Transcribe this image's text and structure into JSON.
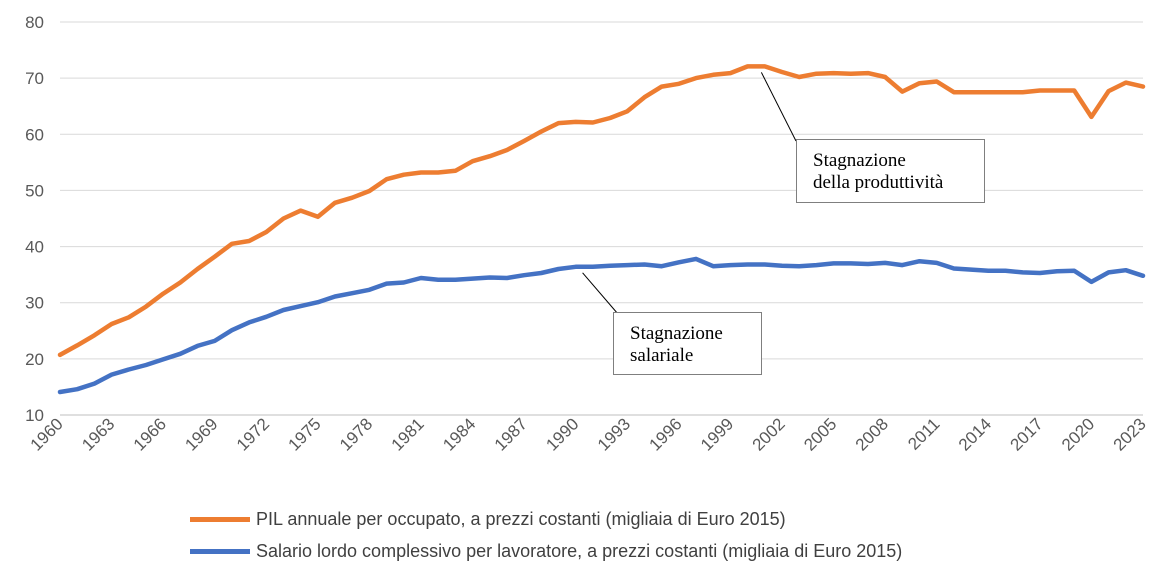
{
  "chart_data": {
    "type": "line",
    "title": "",
    "xlabel": "",
    "ylabel": "",
    "ylim": [
      10,
      80
    ],
    "yticks": [
      10,
      20,
      30,
      40,
      50,
      60,
      70,
      80
    ],
    "xlim": [
      1960,
      2023
    ],
    "xtick_labels": [
      "1960",
      "1963",
      "1966",
      "1969",
      "1972",
      "1975",
      "1978",
      "1981",
      "1984",
      "1987",
      "1990",
      "1993",
      "1996",
      "1999",
      "2002",
      "2005",
      "2008",
      "2011",
      "2014",
      "2017",
      "2020",
      "2023"
    ],
    "grid": "horizontal",
    "legend_position": "bottom",
    "series": [
      {
        "name": "PIL annuale per occupato, a prezzi costanti (migliaia di Euro 2015)",
        "color": "#ED7D31",
        "x": [
          1960,
          1961,
          1962,
          1963,
          1964,
          1965,
          1966,
          1967,
          1968,
          1969,
          1970,
          1971,
          1972,
          1973,
          1974,
          1975,
          1976,
          1977,
          1978,
          1979,
          1980,
          1981,
          1982,
          1983,
          1984,
          1985,
          1986,
          1987,
          1988,
          1989,
          1990,
          1991,
          1992,
          1993,
          1994,
          1995,
          1996,
          1997,
          1998,
          1999,
          2000,
          2001,
          2002,
          2003,
          2004,
          2005,
          2006,
          2007,
          2008,
          2009,
          2010,
          2011,
          2012,
          2013,
          2014,
          2015,
          2016,
          2017,
          2018,
          2019,
          2020,
          2021,
          2022,
          2023
        ],
        "values": [
          20.7,
          22.4,
          24.2,
          26.2,
          27.4,
          29.3,
          31.6,
          33.6,
          36.0,
          38.2,
          40.5,
          41.0,
          42.6,
          45.0,
          46.4,
          45.3,
          47.8,
          48.7,
          49.9,
          52.0,
          52.8,
          53.2,
          53.2,
          53.5,
          55.2,
          56.1,
          57.2,
          58.8,
          60.5,
          62.0,
          62.2,
          62.1,
          62.9,
          64.1,
          66.6,
          68.5,
          69.0,
          70.0,
          70.6,
          70.9,
          72.1,
          72.1,
          71.1,
          70.2,
          70.8,
          70.9,
          70.8,
          70.9,
          70.2,
          67.6,
          69.1,
          69.4,
          67.5,
          67.5,
          67.5,
          67.5,
          67.5,
          67.8,
          67.8,
          67.8,
          63.1,
          67.7,
          69.2,
          68.5
        ]
      },
      {
        "name": "Salario lordo complessivo per lavoratore, a prezzi costanti (migliaia di Euro 2015)",
        "color": "#4472C4",
        "x": [
          1960,
          1961,
          1962,
          1963,
          1964,
          1965,
          1966,
          1967,
          1968,
          1969,
          1970,
          1971,
          1972,
          1973,
          1974,
          1975,
          1976,
          1977,
          1978,
          1979,
          1980,
          1981,
          1982,
          1983,
          1984,
          1985,
          1986,
          1987,
          1988,
          1989,
          1990,
          1991,
          1992,
          1993,
          1994,
          1995,
          1996,
          1997,
          1998,
          1999,
          2000,
          2001,
          2002,
          2003,
          2004,
          2005,
          2006,
          2007,
          2008,
          2009,
          2010,
          2011,
          2012,
          2013,
          2014,
          2015,
          2016,
          2017,
          2018,
          2019,
          2020,
          2021,
          2022,
          2023
        ],
        "values": [
          14.1,
          14.6,
          15.6,
          17.2,
          18.1,
          18.9,
          19.9,
          20.9,
          22.3,
          23.2,
          25.1,
          26.5,
          27.5,
          28.7,
          29.4,
          30.1,
          31.1,
          31.7,
          32.3,
          33.4,
          33.6,
          34.4,
          34.1,
          34.1,
          34.3,
          34.5,
          34.4,
          34.9,
          35.3,
          36.0,
          36.4,
          36.4,
          36.6,
          36.7,
          36.8,
          36.5,
          37.2,
          37.8,
          36.5,
          36.7,
          36.8,
          36.8,
          36.6,
          36.5,
          36.7,
          37.0,
          37.0,
          36.9,
          37.1,
          36.7,
          37.4,
          37.1,
          36.1,
          35.9,
          35.7,
          35.7,
          35.4,
          35.3,
          35.6,
          35.7,
          33.7,
          35.4,
          35.8,
          34.8
        ]
      }
    ],
    "annotations": [
      {
        "id": "productivity",
        "text_line1": "Stagnazione",
        "text_line2": "della produttività",
        "points_to_x": 2000.8,
        "points_to_y": 72.1
      },
      {
        "id": "wage",
        "text_line1": "Stagnazione",
        "text_line2": "salariale",
        "points_to_x": 1990.4,
        "points_to_y": 36.4
      }
    ]
  }
}
